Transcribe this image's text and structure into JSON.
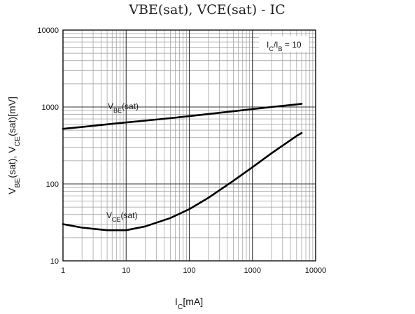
{
  "chart_data": {
    "type": "line",
    "title": "VBE(sat), VCE(sat) - IC",
    "xlabel": "IC[mA]",
    "ylabel": "VBE(sat), VCE(sat)[mV]",
    "x_scale": "log",
    "y_scale": "log",
    "xlim": [
      1,
      10000
    ],
    "ylim": [
      10,
      10000
    ],
    "x_ticks": [
      "1",
      "10",
      "100",
      "1000",
      "10000"
    ],
    "y_ticks": [
      "10",
      "100",
      "1000",
      "10000"
    ],
    "grid": true,
    "legend": "none",
    "annotation": "IC/IB = 10",
    "line_color": "#000000",
    "series": [
      {
        "name": "VBE(sat)",
        "x": [
          1,
          2,
          5,
          10,
          20,
          50,
          100,
          200,
          500,
          1000,
          2000,
          5000,
          6000
        ],
        "y": [
          520,
          550,
          595,
          630,
          665,
          715,
          760,
          810,
          880,
          940,
          1000,
          1080,
          1100
        ]
      },
      {
        "name": "VCE(sat)",
        "x": [
          1,
          2,
          5,
          10,
          20,
          50,
          100,
          200,
          500,
          1000,
          2000,
          5000,
          6000
        ],
        "y": [
          30,
          27,
          25,
          25,
          28,
          36,
          47,
          66,
          110,
          165,
          250,
          420,
          460
        ]
      }
    ]
  }
}
